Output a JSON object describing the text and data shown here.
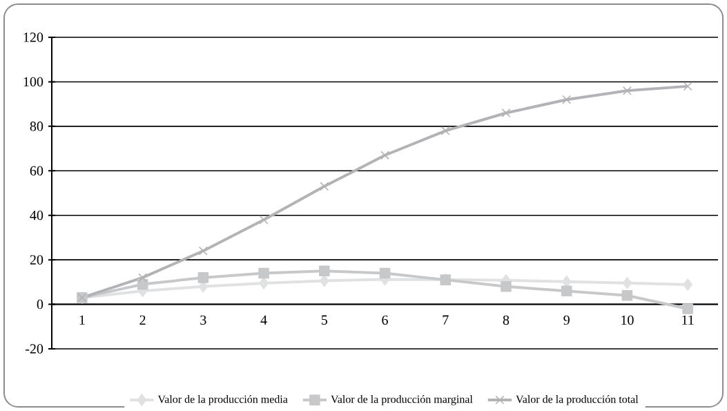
{
  "chart_data": {
    "type": "line",
    "categories": [
      "1",
      "2",
      "3",
      "4",
      "5",
      "6",
      "7",
      "8",
      "9",
      "10",
      "11"
    ],
    "series": [
      {
        "name": "Valor de la producción media",
        "color": "#e0e1e3",
        "marker": "diamond",
        "values": [
          3,
          6,
          8,
          9.5,
          10.6,
          11.2,
          11.1,
          10.8,
          10.2,
          9.6,
          8.9
        ]
      },
      {
        "name": "Valor de la producción marginal",
        "color": "#c7c8ca",
        "marker": "square",
        "values": [
          3,
          9,
          12,
          14,
          15,
          14,
          11,
          8,
          6,
          4,
          -2
        ]
      },
      {
        "name": "Valor de la producción total",
        "color": "#b2b3b6",
        "marker": "cross",
        "values": [
          3,
          12,
          24,
          38,
          53,
          67,
          78,
          86,
          92,
          96,
          98
        ]
      }
    ],
    "ylim": [
      -20,
      120
    ],
    "yticks": [
      -20,
      0,
      20,
      40,
      60,
      80,
      100,
      120
    ],
    "grid": "y",
    "legend": "bottom",
    "line_style": "solid"
  }
}
